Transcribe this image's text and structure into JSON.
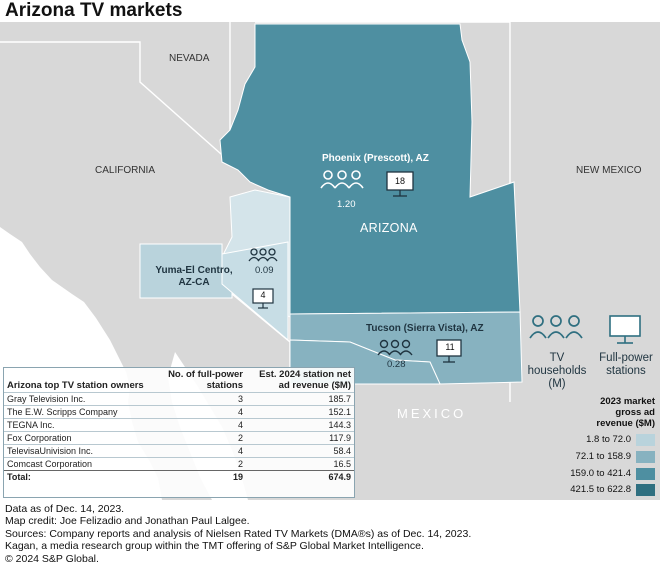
{
  "title": "Arizona TV markets",
  "region_labels": {
    "nevada": "NEVADA",
    "california": "CALIFORNIA",
    "new_mexico": "NEW MEXICO",
    "arizona": "ARIZONA",
    "mexico": "MEXICO"
  },
  "markets": [
    {
      "name": "Phoenix (Prescott), AZ",
      "tv_households_m": "1.20",
      "full_power_stations": "18"
    },
    {
      "name": "Yuma-El Centro, AZ-CA",
      "tv_households_m": "0.09",
      "full_power_stations": "4"
    },
    {
      "name": "Tucson (Sierra Vista), AZ",
      "tv_households_m": "0.28",
      "full_power_stations": "11"
    }
  ],
  "icon_legend": {
    "households": "TV households (M)",
    "stations": "Full-power stations"
  },
  "color_legend": {
    "title": "2023 market gross ad revenue ($M)",
    "bins": [
      {
        "label": "1.8 to 72.0",
        "color": "#b9d3dc"
      },
      {
        "label": "72.1 to 158.9",
        "color": "#87b2c0"
      },
      {
        "label": "159.0 to 421.4",
        "color": "#4e8fa1"
      },
      {
        "label": "421.5 to 622.8",
        "color": "#2f6f80"
      }
    ]
  },
  "table": {
    "headers": [
      "Arizona top TV station owners",
      "No. of full-power stations",
      "Est. 2024 station net ad revenue ($M)"
    ],
    "rows": [
      [
        "Gray Television Inc.",
        "3",
        "185.7"
      ],
      [
        "The E.W. Scripps Company",
        "4",
        "152.1"
      ],
      [
        "TEGNA Inc.",
        "4",
        "144.3"
      ],
      [
        "Fox Corporation",
        "2",
        "117.9"
      ],
      [
        "TelevisaUnivision Inc.",
        "4",
        "58.4"
      ],
      [
        "Comcast Corporation",
        "2",
        "16.5"
      ]
    ],
    "total": [
      "Total:",
      "19",
      "674.9"
    ]
  },
  "footer": [
    "Data as of Dec. 14, 2023.",
    "Map credit: Joe Felizadio and Jonathan Paul Lalgee.",
    "Sources: Company reports and analysis of Nielsen Rated TV Markets (DMA®s) as of Dec. 14, 2023.",
    "Kagan, a media research group within the TMT offering of S&P Global Market Intelligence.",
    "© 2024 S&P Global."
  ],
  "colors": {
    "background_land": "#d8d8d8",
    "ocean": "#ffffff",
    "phoenix": "#4e8fa1",
    "tucson": "#87b2c0",
    "yuma": "#b9d3dc",
    "light_az": "#d4e4ea"
  }
}
